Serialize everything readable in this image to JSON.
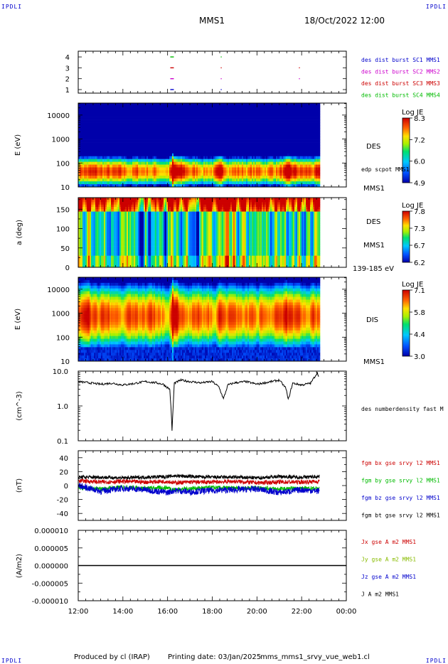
{
  "header": {
    "corner_tl": "IPDLI",
    "corner_tr": "IPDLI",
    "corner_bl": "IPDLI",
    "corner_br": "IPDLI",
    "mission": "MMS1",
    "date": "18/Oct/2022 12:00"
  },
  "footer": {
    "produced": "Produced by cl (IRAP)",
    "printing": "Printing date: 03/Jan/2025",
    "file": "mms_mms1_srvy_vue_web1.cl"
  },
  "time_axis": {
    "ticks": [
      "12:00",
      "14:00",
      "16:00",
      "18:00",
      "20:00",
      "22:00",
      "00:00"
    ],
    "start_hour": 12,
    "end_hour": 24,
    "data_end_hour": 22.8
  },
  "panels": {
    "burst": {
      "yticks": [
        "4",
        "3",
        "2",
        "1"
      ],
      "legend": [
        {
          "text": "des dist burst SC1 MMS1",
          "color": "#0000cc"
        },
        {
          "text": "des dist burst SC2 MMS2",
          "color": "#cc00cc"
        },
        {
          "text": "des dist burst SC3 MMS3",
          "color": "#cc0000"
        },
        {
          "text": "des dist burst SC4 MMS4",
          "color": "#00bb00"
        }
      ]
    },
    "des_energy": {
      "ylabel": "E (eV)",
      "yticks": [
        "10000",
        "1000",
        "100",
        "10"
      ],
      "right_label": "DES",
      "right_sub": "edp scpot MMS1",
      "right_bottom": "MMS1",
      "colorbar": {
        "title": "Log JE",
        "ticks": [
          "8.3",
          "7.2",
          "6.0",
          "4.9"
        ]
      }
    },
    "des_pitch": {
      "ylabel": "a (deg)",
      "yticks": [
        "150",
        "100",
        "50",
        "0"
      ],
      "right_label": "DES",
      "right_sub": "MMS1",
      "right_bottom": "139-185 eV",
      "colorbar": {
        "title": "Log JE",
        "ticks": [
          "7.8",
          "7.3",
          "6.7",
          "6.2"
        ]
      }
    },
    "dis_energy": {
      "ylabel": "E (eV)",
      "yticks": [
        "10000",
        "1000",
        "100",
        "10"
      ],
      "right_label": "DIS",
      "right_bottom": "MMS1",
      "colorbar": {
        "title": "Log JE",
        "ticks": [
          "7.1",
          "5.8",
          "4.4",
          "3.0"
        ]
      }
    },
    "density": {
      "ylabel": "(cm^-3)",
      "yticks": [
        "10.0",
        "1.0",
        "0.1"
      ],
      "legend": "des numberdensity fast M"
    },
    "bfield": {
      "ylabel": "(nT)",
      "yticks": [
        "40",
        "20",
        "0",
        "-20",
        "-40"
      ],
      "legend": [
        {
          "text": "fgm bx gse srvy l2 MMS1",
          "color": "#cc0000"
        },
        {
          "text": "fgm by gse srvy l2 MMS1",
          "color": "#00bb00"
        },
        {
          "text": "fgm bz gse srvy l2 MMS1",
          "color": "#0000cc"
        },
        {
          "text": "fgm bt gse srvy l2 MMS1",
          "color": "#000000"
        }
      ]
    },
    "current": {
      "ylabel": "(A/m2)",
      "yticks": [
        "0.000010",
        "0.000005",
        "0.000000",
        "-0.000005",
        "-0.000010"
      ],
      "legend": [
        {
          "text": "Jx gse A m2 MMS1",
          "color": "#cc0000"
        },
        {
          "text": "Jy gse A m2 MMS1",
          "color": "#88bb00"
        },
        {
          "text": "Jz gse A m2 MMS1",
          "color": "#0000cc"
        },
        {
          "text": "J A m2 MMS1",
          "color": "#000000"
        }
      ]
    }
  },
  "chart_data": {
    "type": "line",
    "x_unit": "hour of day (UT)",
    "density": {
      "x": [
        12.0,
        12.5,
        13.0,
        13.5,
        14.0,
        14.5,
        15.0,
        15.5,
        15.8,
        16.1,
        16.15,
        16.2,
        16.3,
        16.6,
        17.0,
        17.5,
        18.0,
        18.3,
        18.5,
        18.7,
        19.0,
        19.5,
        20.0,
        20.5,
        21.0,
        21.3,
        21.4,
        21.6,
        22.0,
        22.4,
        22.7,
        22.8
      ],
      "values": [
        5.0,
        4.6,
        4.2,
        4.5,
        4.0,
        4.4,
        5.0,
        4.6,
        4.2,
        3.0,
        0.9,
        0.2,
        4.5,
        5.5,
        5.0,
        4.6,
        5.0,
        3.5,
        1.6,
        4.0,
        4.6,
        5.0,
        4.2,
        4.8,
        5.5,
        3.2,
        1.5,
        4.5,
        4.0,
        4.5,
        9.0,
        6.5
      ],
      "ylim": [
        0.1,
        10.0
      ],
      "scale": "log"
    },
    "bfield": {
      "x": [
        12.0,
        13.0,
        14.0,
        15.0,
        16.0,
        16.3,
        17.0,
        18.0,
        19.0,
        20.0,
        21.0,
        22.0,
        22.8
      ],
      "series": [
        {
          "name": "fgm bx gse srvy l2 MMS1",
          "values": [
            7,
            5,
            6,
            5,
            6,
            4,
            5,
            5,
            6,
            4,
            5,
            5,
            6
          ]
        },
        {
          "name": "fgm by gse srvy l2 MMS1",
          "values": [
            -3,
            -5,
            -2,
            -4,
            -3,
            -6,
            -4,
            -3,
            -4,
            -3,
            -5,
            -4,
            -4
          ]
        },
        {
          "name": "fgm bz gse srvy l2 MMS1",
          "values": [
            0,
            -8,
            -4,
            -6,
            -10,
            -7,
            -9,
            -7,
            -6,
            -5,
            -10,
            -6,
            -8
          ]
        },
        {
          "name": "fgm bt gse srvy l2 MMS1",
          "values": [
            12,
            12,
            11,
            12,
            13,
            14,
            13,
            12,
            12,
            11,
            13,
            12,
            13
          ]
        }
      ],
      "ylim": [
        -50,
        50
      ]
    },
    "current": {
      "x": [
        12.0,
        24.0
      ],
      "values": [
        0.0,
        0.0
      ],
      "ylim": [
        -1e-05,
        1e-05
      ]
    },
    "burst_marks": {
      "sc4": [
        16.2,
        18.4
      ],
      "sc3": [
        16.2,
        18.4,
        21.9
      ],
      "sc2": [
        16.2,
        18.4,
        21.9
      ],
      "sc1": [
        16.2,
        18.4
      ]
    },
    "spectrogram_intensity_profile": {
      "x": [
        12.0,
        13.0,
        14.0,
        15.0,
        16.0,
        16.2,
        17.0,
        18.0,
        18.4,
        19.0,
        20.0,
        21.0,
        21.4,
        22.0,
        22.8
      ],
      "des_peak_log_je": [
        7.8,
        7.6,
        7.4,
        7.5,
        7.2,
        8.3,
        7.5,
        7.4,
        7.9,
        7.5,
        7.4,
        7.6,
        8.0,
        7.6,
        7.7
      ]
    }
  }
}
